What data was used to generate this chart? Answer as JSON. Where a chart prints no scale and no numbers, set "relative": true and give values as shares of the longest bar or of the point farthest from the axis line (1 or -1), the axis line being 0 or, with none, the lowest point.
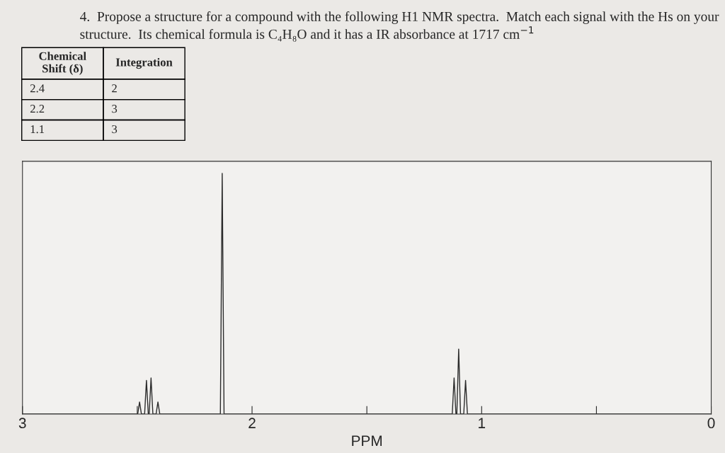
{
  "chart_data": {
    "type": "line",
    "title": "4.  Propose a structure for a compound with the following H1 NMR spectra.  Match each signal with the Hs on your structure.  Its chemical formula is C₄H₈O and it has a IR absorbance at 1717 cm$^{−1}$",
    "xlabel": "PPM",
    "relative": true,
    "xlim": [
      3,
      0
    ],
    "xticks": [
      3,
      {
        "value": 2.5,
        "label": null
      },
      2,
      {
        "value": 1.5,
        "label": null
      },
      1,
      {
        "value": 0.5,
        "label": null
      },
      0
    ],
    "tick_labels": "x",
    "grid": false,
    "annotations": [
      "Chemical\nShift (δ)",
      "Integration",
      "2.4",
      "2",
      "2.2",
      "3",
      "1.1",
      "3"
    ],
    "series": [
      {
        "color": "#2b2b2b",
        "x": [
          3,
          2.5,
          2.498,
          2.49,
          2.482,
          2.468,
          2.46,
          2.452,
          2.448,
          2.44,
          2.432,
          2.418,
          2.41,
          2.402,
          2.2,
          2.138,
          2.13,
          2.122,
          1.5,
          1.128,
          1.12,
          1.112,
          1.108,
          1.1,
          1.092,
          1.078,
          1.07,
          1.062,
          0
        ],
        "values": [
          0,
          0,
          0,
          0.05,
          0,
          0,
          0.14,
          0,
          0,
          0.15,
          0,
          0,
          0.05,
          0,
          0,
          0,
          1,
          0,
          0,
          0,
          0.15,
          0,
          0,
          0.27,
          0,
          0,
          0.14,
          0,
          0
        ]
      }
    ]
  }
}
